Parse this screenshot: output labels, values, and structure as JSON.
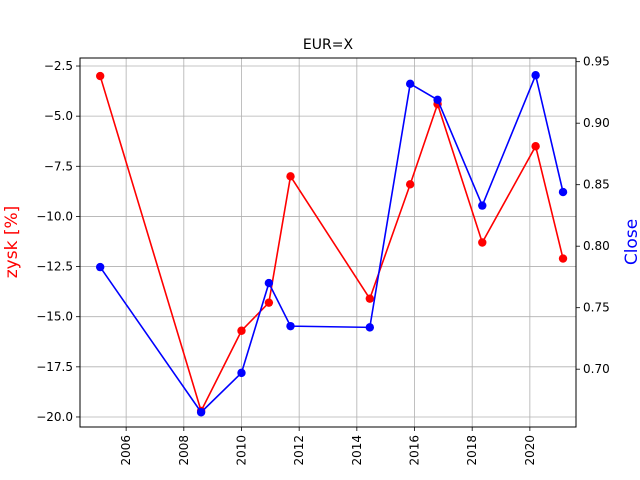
{
  "chart_data": {
    "type": "line",
    "title": "EUR=X",
    "xlabel": "",
    "ylabel_left": "zysk [%]",
    "ylabel_right": "Close",
    "xlim": [
      2004.4,
      2021.6
    ],
    "ylim_left": [
      -20.5,
      -2.1
    ],
    "ylim_right": [
      0.653,
      0.953
    ],
    "grid": true,
    "x_ticks": [
      2006,
      2008,
      2010,
      2012,
      2014,
      2016,
      2018,
      2020
    ],
    "y_ticks_left": [
      -2.5,
      -5.0,
      -7.5,
      -10.0,
      -12.5,
      -15.0,
      -17.5,
      -20.0
    ],
    "y_ticks_right": [
      0.95,
      0.9,
      0.85,
      0.8,
      0.75,
      0.7
    ],
    "series": [
      {
        "axis": "left",
        "color": "#ff0000",
        "x": [
          2005.1,
          2008.6,
          2010.0,
          2010.95,
          2011.7,
          2014.45,
          2015.85,
          2016.8,
          2018.35,
          2020.2,
          2021.15
        ],
        "values": [
          -3.0,
          -19.7,
          -15.7,
          -14.3,
          -8.0,
          -14.1,
          -8.4,
          -4.4,
          -11.3,
          -6.5,
          -12.1
        ]
      },
      {
        "axis": "right",
        "color": "#0000ff",
        "x": [
          2005.1,
          2008.6,
          2010.0,
          2010.95,
          2011.7,
          2014.45,
          2015.85,
          2016.8,
          2018.35,
          2020.2,
          2021.15
        ],
        "values": [
          0.783,
          0.665,
          0.697,
          0.77,
          0.735,
          0.734,
          0.932,
          0.919,
          0.833,
          0.939,
          0.844
        ]
      }
    ]
  }
}
